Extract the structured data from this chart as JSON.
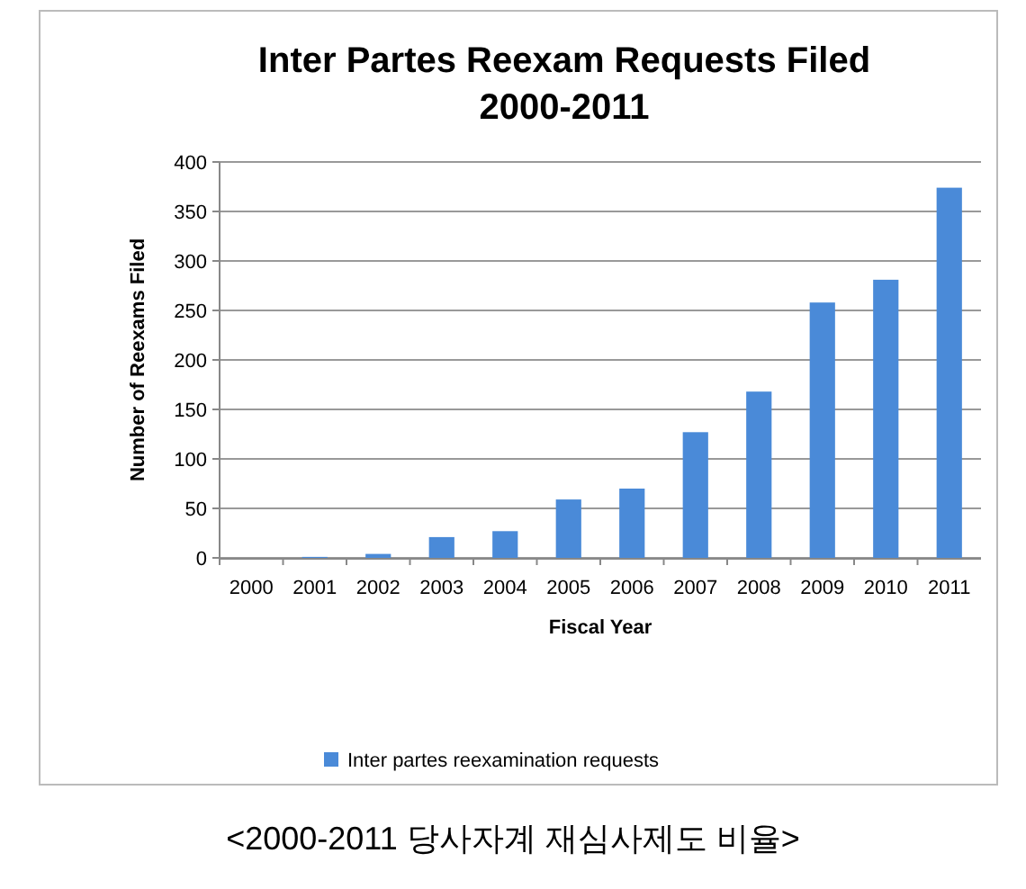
{
  "chart_data": {
    "type": "bar",
    "title": "Inter Partes Reexam Requests Filed 2000-2011",
    "xlabel": "Fiscal Year",
    "ylabel": "Number of Reexams Filed",
    "categories": [
      "2000",
      "2001",
      "2002",
      "2003",
      "2004",
      "2005",
      "2006",
      "2007",
      "2008",
      "2009",
      "2010",
      "2011"
    ],
    "series": [
      {
        "name": "Inter partes reexamination requests",
        "color": "#4a8ad8",
        "values": [
          0,
          1,
          4,
          21,
          27,
          59,
          70,
          127,
          168,
          258,
          281,
          374
        ]
      }
    ],
    "ylim": [
      0,
      400
    ],
    "yticks": [
      0,
      50,
      100,
      150,
      200,
      250,
      300,
      350,
      400
    ],
    "grid": "y",
    "legend": "bottom",
    "annotations": [
      "<2000-2011 당사자계 재심사제도 비율>"
    ]
  }
}
